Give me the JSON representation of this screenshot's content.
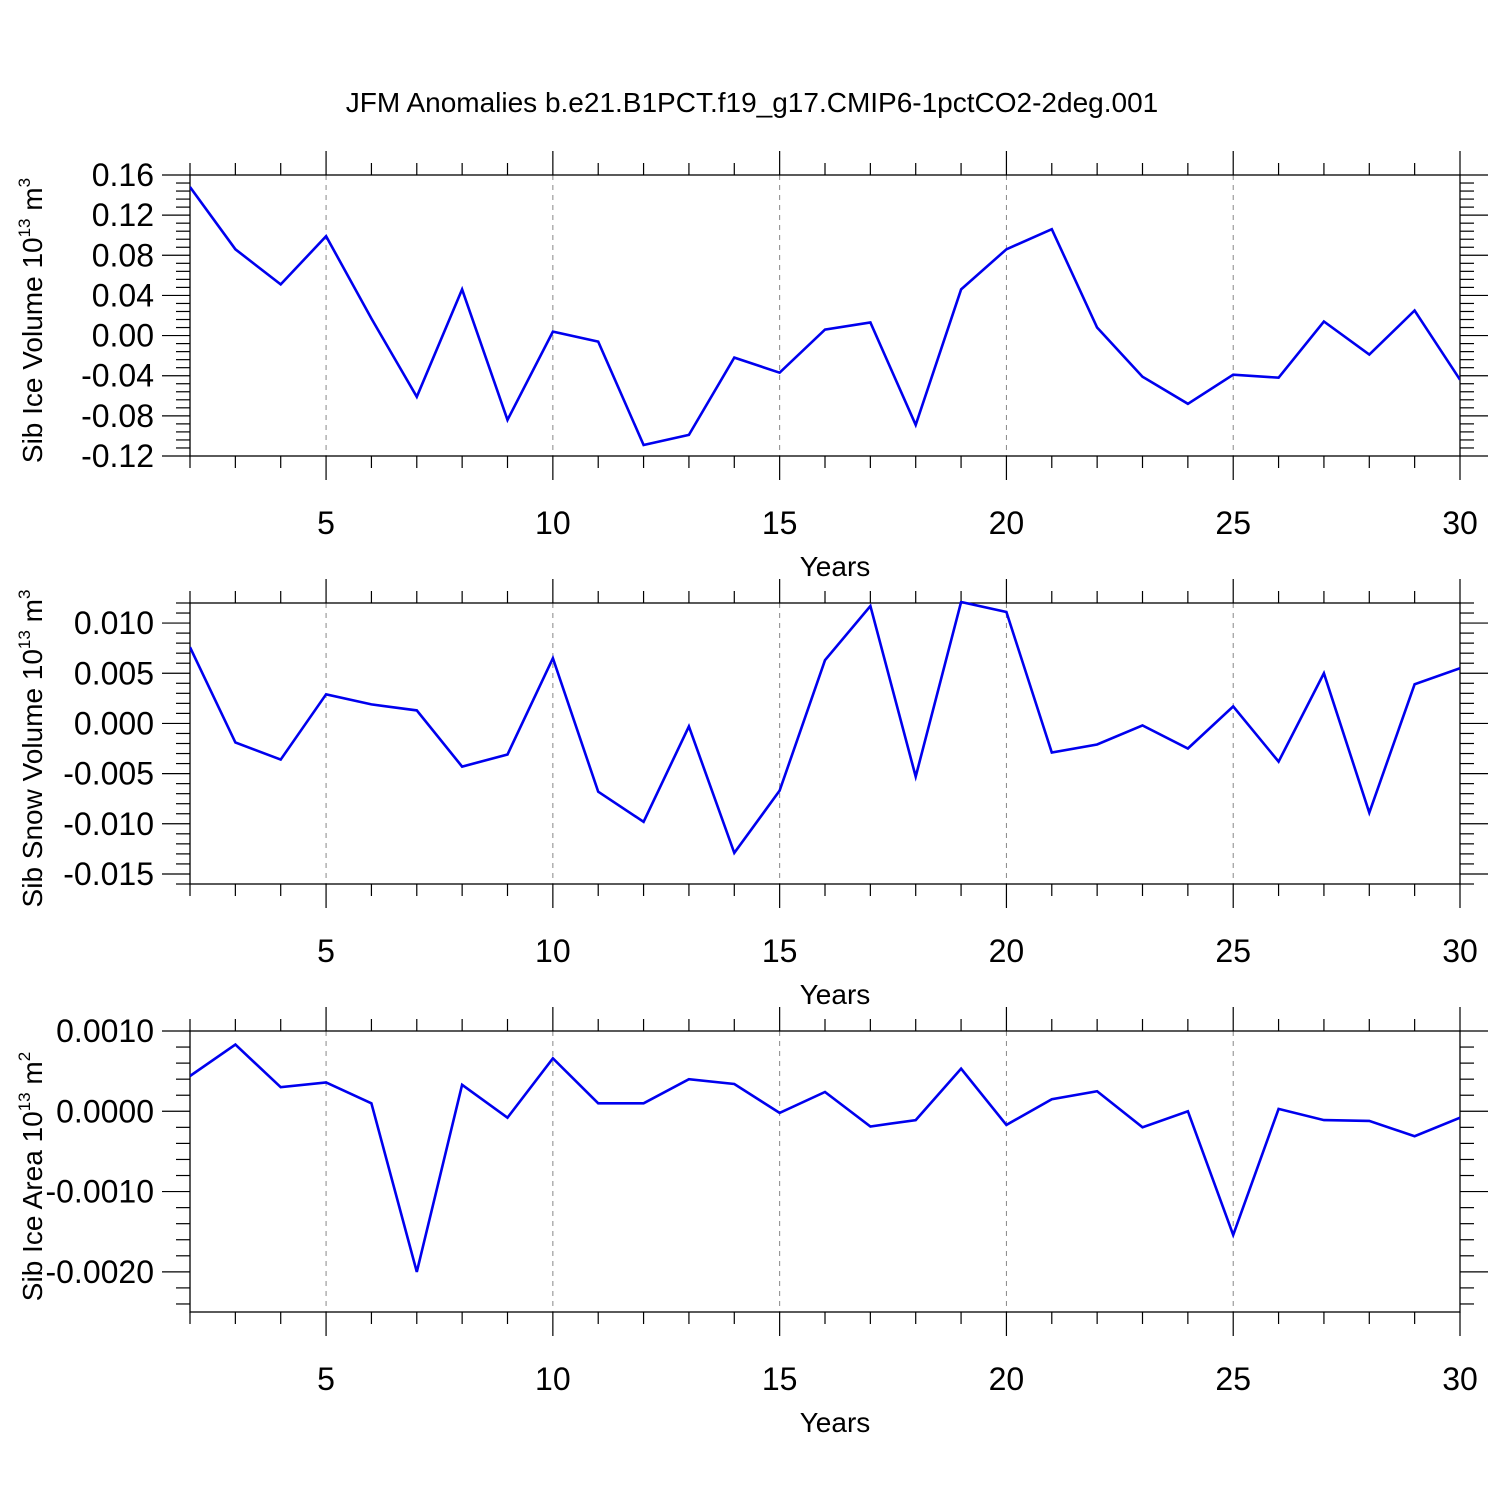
{
  "title": "JFM Anomalies b.e21.B1PCT.f19_g17.CMIP6-1pctCO2-2deg.001",
  "colors": {
    "line": "#0000ee",
    "axis": "#000000",
    "grid": "#888888"
  },
  "chart_data": [
    {
      "type": "line",
      "title": "JFM Anomalies b.e21.B1PCT.f19_g17.CMIP6-1pctCO2-2deg.001",
      "xlabel": "Years",
      "ylabel": {
        "main": "Sib Ice Volume 10",
        "exp": "13",
        "unit": " m",
        "unit_exp": "3"
      },
      "xlim": [
        2,
        30
      ],
      "ylim": [
        -0.12,
        0.16
      ],
      "xticks": [
        "5",
        "10",
        "15",
        "20",
        "25",
        "30"
      ],
      "yticks": [
        "0.16",
        "0.12",
        "0.08",
        "0.04",
        "0.00",
        "-0.04",
        "-0.08",
        "-0.12"
      ],
      "x": [
        2,
        3,
        4,
        5,
        6,
        7,
        8,
        9,
        10,
        11,
        12,
        13,
        14,
        15,
        16,
        17,
        18,
        19,
        20,
        21,
        22,
        23,
        24,
        25,
        26,
        27,
        28,
        29,
        30
      ],
      "values": [
        0.148,
        0.086,
        0.051,
        0.099,
        0.017,
        -0.061,
        0.046,
        -0.084,
        0.004,
        -0.006,
        -0.109,
        -0.099,
        -0.022,
        -0.037,
        0.006,
        0.013,
        -0.089,
        0.046,
        0.086,
        0.106,
        0.008,
        -0.041,
        -0.068,
        -0.039,
        -0.042,
        0.014,
        -0.019,
        0.025,
        -0.044
      ]
    },
    {
      "type": "line",
      "xlabel": "Years",
      "ylabel": {
        "main": "Sib Snow Volume 10",
        "exp": "13",
        "unit": " m",
        "unit_exp": "3"
      },
      "xlim": [
        2,
        30
      ],
      "ylim": [
        -0.016,
        0.012
      ],
      "xticks": [
        "5",
        "10",
        "15",
        "20",
        "25",
        "30"
      ],
      "yticks": [
        "0.010",
        "0.005",
        "0.000",
        "-0.005",
        "-0.010",
        "-0.015"
      ],
      "x": [
        2,
        3,
        4,
        5,
        6,
        7,
        8,
        9,
        10,
        11,
        12,
        13,
        14,
        15,
        16,
        17,
        18,
        19,
        20,
        21,
        22,
        23,
        24,
        25,
        26,
        27,
        28,
        29,
        30
      ],
      "values": [
        0.0076,
        -0.0019,
        -0.0036,
        0.0029,
        0.0019,
        0.0013,
        -0.0043,
        -0.0031,
        0.0065,
        -0.0068,
        -0.0098,
        -0.0003,
        -0.0129,
        -0.0067,
        0.0063,
        0.0117,
        -0.0053,
        0.0121,
        0.0111,
        -0.0029,
        -0.0021,
        -0.0002,
        -0.0025,
        0.0017,
        -0.0038,
        0.005,
        -0.0089,
        0.0039,
        0.0055
      ]
    },
    {
      "type": "line",
      "xlabel": "Years",
      "ylabel": {
        "main": "Sib Ice Area 10",
        "exp": "13",
        "unit": " m",
        "unit_exp": "2"
      },
      "xlim": [
        2,
        30
      ],
      "ylim": [
        -0.0025,
        0.001
      ],
      "xticks": [
        "5",
        "10",
        "15",
        "20",
        "25",
        "30"
      ],
      "yticks": [
        "0.0010",
        "0.0000",
        "-0.0010",
        "-0.0020"
      ],
      "x": [
        2,
        3,
        4,
        5,
        6,
        7,
        8,
        9,
        10,
        11,
        12,
        13,
        14,
        15,
        16,
        17,
        18,
        19,
        20,
        21,
        22,
        23,
        24,
        25,
        26,
        27,
        28,
        29,
        30
      ],
      "values": [
        0.00044,
        0.00083,
        0.0003,
        0.00036,
        0.0001,
        -0.002,
        0.00033,
        -8e-05,
        0.00066,
        0.0001,
        0.0001,
        0.0004,
        0.00034,
        -2e-05,
        0.00024,
        -0.00019,
        -0.00011,
        0.00053,
        -0.00017,
        0.00015,
        0.00025,
        -0.0002,
        0.0,
        -0.00154,
        3e-05,
        -0.00011,
        -0.00012,
        -0.00031,
        -8e-05
      ]
    }
  ]
}
